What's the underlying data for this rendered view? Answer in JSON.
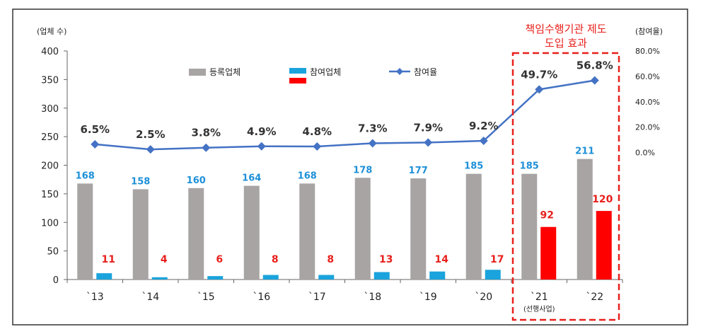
{
  "chart_data": {
    "type": "bar",
    "categories": [
      "`13",
      "`14",
      "`15",
      "`16",
      "`17",
      "`18",
      "`19",
      "`20",
      "`21",
      "`22"
    ],
    "category_note": {
      "index": 8,
      "text": "(선행사업)"
    },
    "series": [
      {
        "name": "등록업체",
        "type": "bar",
        "values": [
          168,
          158,
          160,
          164,
          168,
          178,
          177,
          185,
          185,
          211
        ],
        "color": "#a8a4a4",
        "label_color": "#1e90d8"
      },
      {
        "name": "참여업체",
        "type": "bar",
        "values": [
          11,
          4,
          6,
          8,
          8,
          13,
          14,
          17,
          92,
          120
        ],
        "color": "#1aa3dc",
        "color_highlight": "#ff0000",
        "highlight_from_index": 8,
        "label_color": "#e8201c"
      },
      {
        "name": "참여율",
        "type": "line",
        "axis": "right",
        "values": [
          6.5,
          2.5,
          3.8,
          4.9,
          4.8,
          7.3,
          7.9,
          9.2,
          49.7,
          56.8
        ],
        "labels": [
          "6.5%",
          "2.5%",
          "3.8%",
          "4.9%",
          "4.8%",
          "7.3%",
          "7.9%",
          "9.2%",
          "49.7%",
          "56.8%"
        ],
        "color": "#4472c4"
      }
    ],
    "ylabel_left": "(업체 수)",
    "ylabel_right": "(참여율)",
    "ylim_left": [
      0,
      400
    ],
    "yticks_left": [
      "0",
      "50",
      "100",
      "150",
      "200",
      "250",
      "300",
      "350",
      "400"
    ],
    "yticks_left_values": [
      0,
      50,
      100,
      150,
      200,
      250,
      300,
      350,
      400
    ],
    "ylim_right": [
      -100,
      80
    ],
    "yticks_right": [
      "0.0%",
      "20.0%",
      "40.0%",
      "60.0%",
      "80.0%"
    ],
    "yticks_right_values": [
      0,
      20,
      40,
      60,
      80
    ],
    "legend_placement": "top-left",
    "grid": false,
    "annotation": {
      "lines": [
        "책임수행기관 제도",
        "도입 효과"
      ],
      "color": "#e8201c",
      "highlight_categories": [
        "`21",
        "`22"
      ]
    }
  }
}
